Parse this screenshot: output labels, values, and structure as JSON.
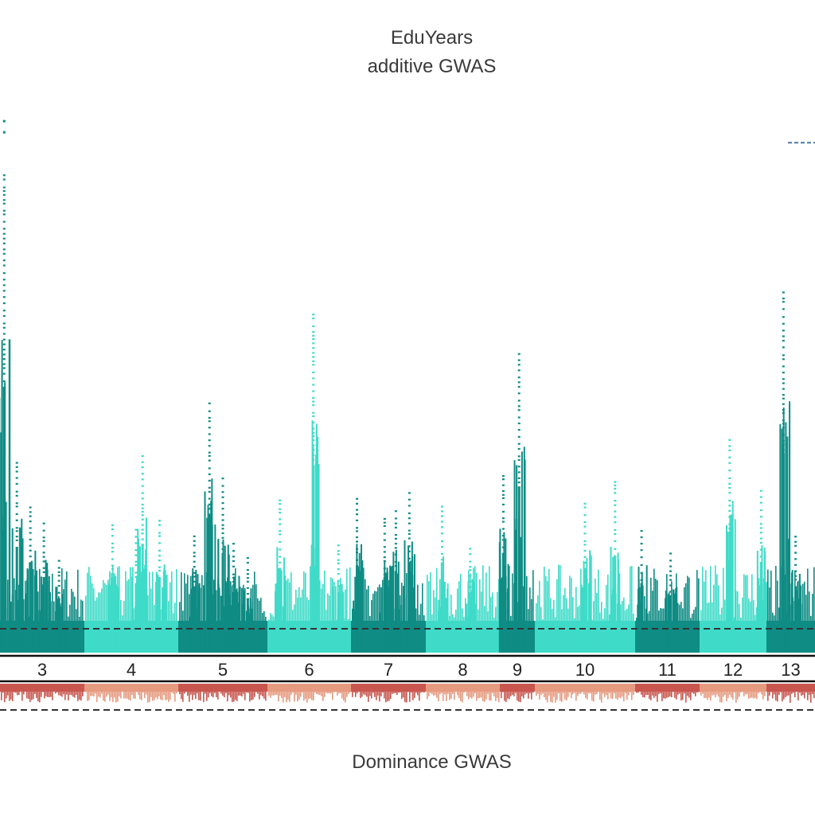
{
  "chart_data": {
    "type": "scatter",
    "title": "EduYears",
    "subtitle": "additive GWAS",
    "lower_panel_title": "Dominance GWAS",
    "xlabel": "",
    "ylabel": "",
    "x_categories": [
      "3",
      "4",
      "5",
      "6",
      "7",
      "8",
      "9",
      "10",
      "11",
      "12",
      "13"
    ],
    "colors": {
      "additive_dark": "#0f8c84",
      "additive_light": "#3fdbc8",
      "dominance_dark": "#c9574f",
      "dominance_light": "#e69a7f",
      "threshold_line": "#333333"
    },
    "grid": false,
    "legend": "none",
    "significance_line": "dashed",
    "chromosomes": [
      {
        "label": "3",
        "shade": "dark",
        "peaks": [
          {
            "pos": 0.05,
            "value": 0.88
          },
          {
            "pos": 0.2,
            "value": 0.35
          },
          {
            "pos": 0.36,
            "value": 0.28
          },
          {
            "pos": 0.52,
            "value": 0.25
          },
          {
            "pos": 0.7,
            "value": 0.18
          }
        ]
      },
      {
        "label": "4",
        "shade": "light",
        "peaks": [
          {
            "pos": 0.3,
            "value": 0.24
          },
          {
            "pos": 0.55,
            "value": 0.23
          },
          {
            "pos": 0.62,
            "value": 0.36
          },
          {
            "pos": 0.8,
            "value": 0.25
          }
        ]
      },
      {
        "label": "5",
        "shade": "dark",
        "peaks": [
          {
            "pos": 0.18,
            "value": 0.22
          },
          {
            "pos": 0.35,
            "value": 0.46
          },
          {
            "pos": 0.5,
            "value": 0.33
          },
          {
            "pos": 0.62,
            "value": 0.2
          },
          {
            "pos": 0.78,
            "value": 0.18
          }
        ]
      },
      {
        "label": "6",
        "shade": "light",
        "peaks": [
          {
            "pos": 0.15,
            "value": 0.28
          },
          {
            "pos": 0.55,
            "value": 0.62
          },
          {
            "pos": 0.85,
            "value": 0.2
          }
        ]
      },
      {
        "label": "7",
        "shade": "dark",
        "peaks": [
          {
            "pos": 0.08,
            "value": 0.29
          },
          {
            "pos": 0.45,
            "value": 0.25
          },
          {
            "pos": 0.6,
            "value": 0.27
          },
          {
            "pos": 0.78,
            "value": 0.3
          }
        ]
      },
      {
        "label": "8",
        "shade": "light",
        "peaks": [
          {
            "pos": 0.22,
            "value": 0.27
          },
          {
            "pos": 0.6,
            "value": 0.2
          }
        ]
      },
      {
        "label": "9",
        "shade": "dark",
        "peaks": [
          {
            "pos": 0.1,
            "value": 0.33
          },
          {
            "pos": 0.55,
            "value": 0.55
          }
        ]
      },
      {
        "label": "10",
        "shade": "light",
        "peaks": [
          {
            "pos": 0.5,
            "value": 0.28
          },
          {
            "pos": 0.8,
            "value": 0.32
          }
        ]
      },
      {
        "label": "11",
        "shade": "dark",
        "peaks": [
          {
            "pos": 0.1,
            "value": 0.23
          },
          {
            "pos": 0.55,
            "value": 0.19
          }
        ]
      },
      {
        "label": "12",
        "shade": "light",
        "peaks": [
          {
            "pos": 0.45,
            "value": 0.4
          },
          {
            "pos": 0.92,
            "value": 0.3
          }
        ]
      },
      {
        "label": "13",
        "shade": "dark",
        "peaks": [
          {
            "pos": 0.35,
            "value": 0.66
          },
          {
            "pos": 0.6,
            "value": 0.22
          }
        ]
      }
    ],
    "top_hits": [
      {
        "chromosome": "3",
        "value": 0.97
      },
      {
        "chromosome": "13",
        "value": 0.93
      }
    ]
  }
}
